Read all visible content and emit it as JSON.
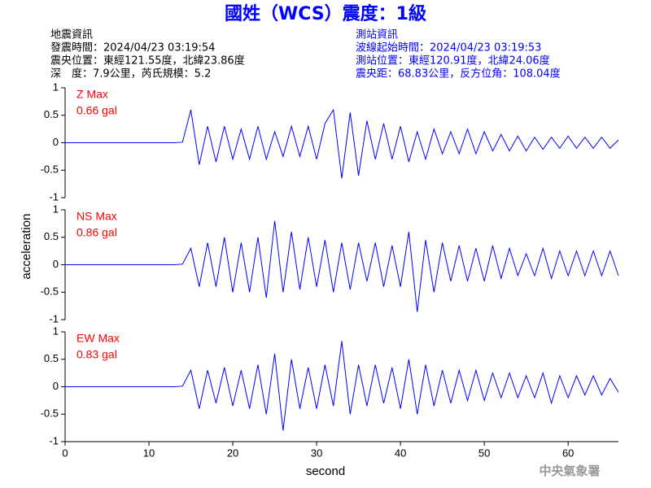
{
  "chart_data": {
    "type": "line",
    "title": "國姓（WCS）震度：1級",
    "info_left": [
      "地震資訊",
      "發震時間：2024/04/23 03:19:54",
      "震央位置：東經121.55度，北緯23.86度",
      "深　度：7.9公里，芮氏規模：5.2"
    ],
    "info_right": [
      "測站資訊",
      "波線起始時間：2024/04/23 03:19:53",
      "測站位置：東經120.91度，北緯24.06度",
      "震央距：68.83公里，反方位角：108.04度"
    ],
    "watermark": "中央氣象署",
    "xlabel": "second",
    "ylabel": "acceleration",
    "xlim": [
      0,
      66
    ],
    "xticks": [
      0,
      10,
      20,
      30,
      40,
      50,
      60
    ],
    "ylim": [
      -1,
      1
    ],
    "yticks": [
      -1,
      -0.5,
      0,
      0.5,
      1
    ],
    "x": [
      0,
      1,
      2,
      3,
      4,
      5,
      6,
      7,
      8,
      9,
      10,
      11,
      12,
      13,
      14,
      15,
      16,
      17,
      18,
      19,
      20,
      21,
      22,
      23,
      24,
      25,
      26,
      27,
      28,
      29,
      30,
      31,
      32,
      33,
      34,
      35,
      36,
      37,
      38,
      39,
      40,
      41,
      42,
      43,
      44,
      45,
      46,
      47,
      48,
      49,
      50,
      51,
      52,
      53,
      54,
      55,
      56,
      57,
      58,
      59,
      60,
      61,
      62,
      63,
      64,
      65,
      66
    ],
    "series": [
      {
        "name": "Z Max",
        "max_label": "0.66 gal",
        "color": "#0000ff",
        "values": [
          0,
          0,
          0,
          0,
          0,
          0,
          0,
          0,
          0,
          0,
          0,
          0,
          0,
          0,
          0.01,
          0.6,
          -0.4,
          0.3,
          -0.35,
          0.3,
          -0.3,
          0.25,
          -0.3,
          0.3,
          -0.3,
          0.2,
          -0.25,
          0.3,
          -0.25,
          0.3,
          -0.3,
          0.35,
          0.6,
          -0.65,
          0.55,
          -0.6,
          0.4,
          -0.3,
          0.35,
          -0.3,
          0.3,
          -0.35,
          0.2,
          -0.3,
          0.25,
          -0.2,
          0.2,
          -0.2,
          0.25,
          -0.2,
          0.2,
          -0.15,
          0.15,
          -0.15,
          0.12,
          -0.15,
          0.1,
          -0.12,
          0.1,
          -0.1,
          0.12,
          -0.1,
          0.1,
          -0.1,
          0.1,
          -0.1,
          0.05
        ]
      },
      {
        "name": "NS Max",
        "max_label": "0.86 gal",
        "color": "#0000ff",
        "values": [
          0,
          0,
          0,
          0,
          0,
          0,
          0,
          0,
          0,
          0,
          0,
          0,
          0,
          0,
          0.01,
          0.3,
          -0.4,
          0.4,
          -0.4,
          0.5,
          -0.5,
          0.4,
          -0.5,
          0.5,
          -0.6,
          0.8,
          -0.5,
          0.6,
          -0.45,
          0.5,
          -0.4,
          0.45,
          -0.5,
          0.4,
          -0.45,
          0.4,
          -0.3,
          0.4,
          -0.4,
          0.35,
          -0.4,
          0.6,
          -0.86,
          0.45,
          -0.5,
          0.4,
          -0.3,
          0.35,
          -0.3,
          0.3,
          -0.3,
          0.35,
          -0.25,
          0.3,
          -0.2,
          0.2,
          -0.2,
          0.3,
          -0.25,
          0.25,
          -0.2,
          0.25,
          -0.2,
          0.25,
          -0.2,
          0.25,
          -0.2
        ]
      },
      {
        "name": "EW Max",
        "max_label": "0.83 gal",
        "color": "#0000ff",
        "values": [
          0,
          0,
          0,
          0,
          0,
          0,
          0,
          0,
          0,
          0,
          0,
          0,
          0,
          0,
          0.01,
          0.3,
          -0.4,
          0.3,
          -0.3,
          0.35,
          -0.35,
          0.3,
          -0.4,
          0.4,
          -0.5,
          0.6,
          -0.8,
          0.5,
          -0.4,
          0.35,
          -0.4,
          0.4,
          -0.35,
          0.83,
          -0.5,
          0.4,
          -0.35,
          0.4,
          -0.3,
          0.35,
          -0.4,
          0.5,
          -0.5,
          0.4,
          -0.35,
          0.3,
          -0.3,
          0.3,
          -0.25,
          0.3,
          -0.25,
          0.25,
          -0.2,
          0.25,
          -0.2,
          0.2,
          -0.2,
          0.25,
          -0.3,
          0.2,
          -0.2,
          0.2,
          -0.15,
          0.2,
          -0.15,
          0.15,
          -0.1
        ]
      }
    ]
  }
}
